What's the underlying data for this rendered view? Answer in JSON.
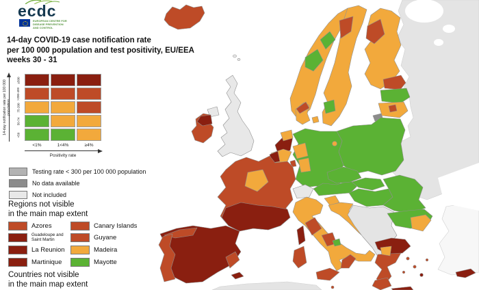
{
  "logo": {
    "wordmark": "ecdc",
    "org_line1": "EUROPEAN CENTRE FOR",
    "org_line2": "DISEASE PREVENTION",
    "org_line3": "AND CONTROL"
  },
  "title": {
    "line1": "14-day COVID-19 case notification rate",
    "line2": "per 100 000 population and test positivity, EU/EEA",
    "line3": "weeks 30 - 31"
  },
  "palette": {
    "green": "#5BB234",
    "orange": "#F2A93C",
    "red": "#BE4B27",
    "darkred": "#8A1F10",
    "grey_testing": "#B3B3B3",
    "grey_nodata": "#8C8C8C",
    "grey_not_included": "#E8E8E8",
    "non_eu": "#E4E4E4",
    "outside": "#F7F7F7",
    "sea": "#FFFFFF"
  },
  "matrix": {
    "y_axis_label": "14-day notification rate per 100 000 population",
    "x_axis_label": "Positivity rate",
    "row_labels": [
      "≥500",
      ">200-499",
      "75-200",
      "50-74",
      "<50"
    ],
    "col_labels": [
      "<1%",
      "1<4%",
      "≥4%"
    ],
    "cells": [
      [
        "darkred",
        "darkred",
        "darkred"
      ],
      [
        "red",
        "red",
        "red"
      ],
      [
        "orange",
        "orange",
        "red"
      ],
      [
        "green",
        "orange",
        "orange"
      ],
      [
        "green",
        "green",
        "orange"
      ]
    ]
  },
  "legend": {
    "items": [
      {
        "color": "grey_testing",
        "label": "Testing rate < 300 per 100 000 population"
      },
      {
        "color": "grey_nodata",
        "label": "No data available"
      },
      {
        "color": "grey_not_included",
        "label": "Not included"
      }
    ]
  },
  "regions_section": {
    "heading_line1": "Regions not visible",
    "heading_line2": "in the main map extent",
    "left": [
      {
        "color": "red",
        "label": "Azores"
      },
      {
        "color": "darkred",
        "label": "Guadeloupe and Saint Martin"
      },
      {
        "color": "darkred",
        "label": "La Reunion"
      },
      {
        "color": "darkred",
        "label": "Martinique"
      }
    ],
    "right": [
      {
        "color": "red",
        "label": "Canary Islands"
      },
      {
        "color": "red",
        "label": "Guyane"
      },
      {
        "color": "orange",
        "label": "Madeira"
      },
      {
        "color": "green",
        "label": "Mayotte"
      }
    ]
  },
  "countries_section": {
    "heading_line1": "Countries not visible",
    "heading_line2": "in the main map extent"
  },
  "map": {
    "regions": {
      "east-noneu": "non_eu",
      "turkey": "outside",
      "north-africa": "non_eu",
      "balkans": "non_eu",
      "switzerland": "grey_not_included",
      "uk": "grey_not_included",
      "northern-ireland": "grey_not_included",
      "kaliningrad": "grey_nodata",
      "faroe1": "grey_not_included",
      "faroe2": "grey_not_included",
      "iceland": "red",
      "ireland": "red",
      "ireland-border": "darkred",
      "norway": "orange",
      "norway-green1": "green",
      "norway-green2": "green",
      "sweden": "orange",
      "sweden-north": "red",
      "sweden-south": "green",
      "finland": "orange",
      "finland-west": "red",
      "denmark": "orange",
      "denmark-isles": "orange",
      "denmark-north": "red",
      "estonia": "red",
      "latvia": "green",
      "lithuania": "orange",
      "lithuania-mid": "red",
      "poland": "green",
      "germany": "green",
      "germany-west1": "orange",
      "germany-west2": "orange",
      "berlin": "orange",
      "netherlands": "darkred",
      "netherlands-north": "orange",
      "belgium": "orange",
      "belgium-west": "darkred",
      "luxembourg": "red",
      "france": "red",
      "france-center": "orange",
      "france-south": "darkred",
      "corsica": "darkred",
      "spain": "darkred",
      "spain-north": "red",
      "spain-southeast": "red",
      "balearics": "darkred",
      "portugal": "red",
      "italy": "orange",
      "italy-tuscany": "red",
      "italy-abruzzo": "red",
      "italy-molise": "green",
      "calabria": "red",
      "sicily": "red",
      "sardinia": "red",
      "malta": "red",
      "austria": "green",
      "czechia": "green",
      "slovakia": "green",
      "hungary": "green",
      "slovenia": "orange",
      "croatia": "orange",
      "croatia-south": "red",
      "romania": "green",
      "bulgaria": "green",
      "bulgaria-se": "orange",
      "greece-north": "darkred",
      "greece-main": "red",
      "greece-thessaly": "orange",
      "peloponnese": "red",
      "crete": "darkred",
      "island1": "red",
      "island2": "red",
      "island3": "darkred",
      "island4": "red",
      "island5": "red",
      "cyprus": "darkred"
    }
  }
}
